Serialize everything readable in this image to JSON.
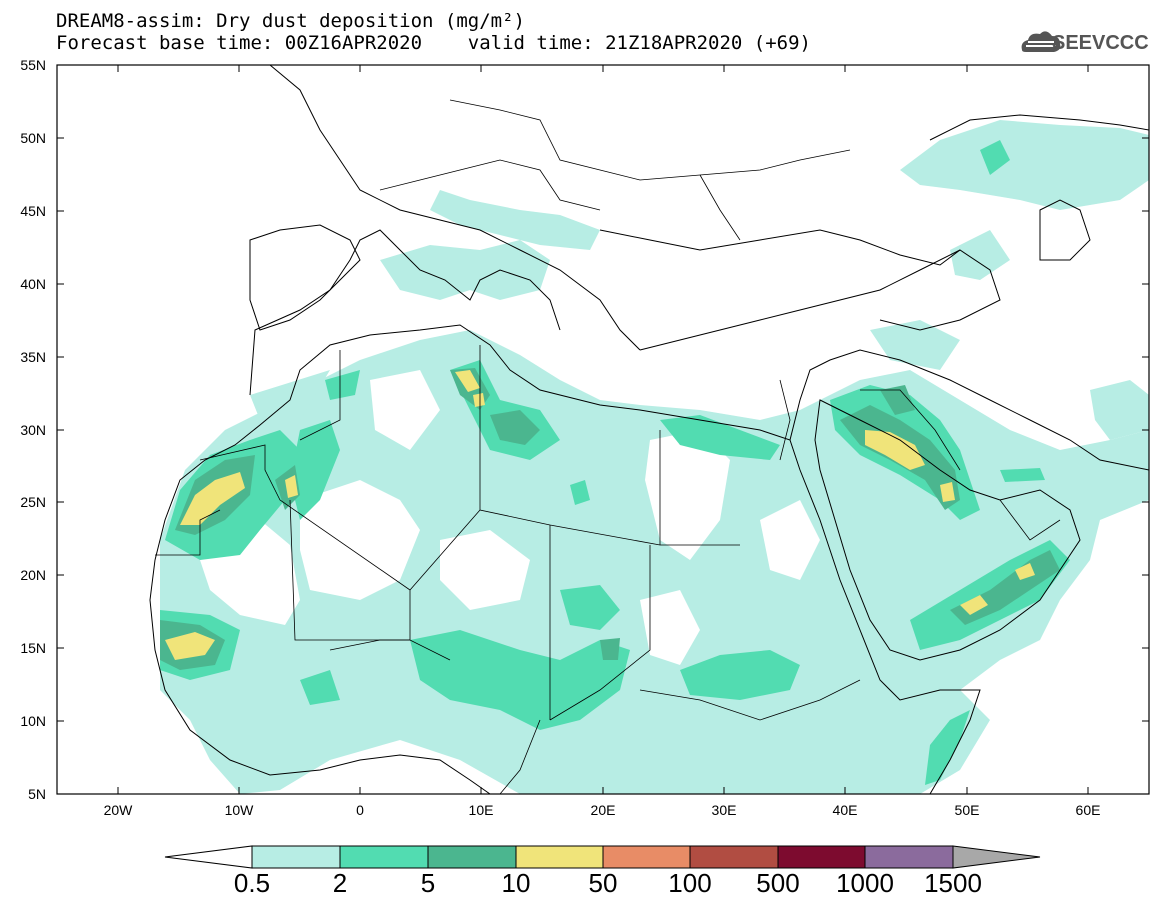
{
  "header": {
    "title_line1": "DREAM8-assim: Dry dust deposition (mg/m²)",
    "title_line2": "Forecast base time: 00Z16APR2020    valid time: 21Z18APR2020 (+69)"
  },
  "logo": {
    "text": "SEEVCCC",
    "icon": "cloud-logo-icon"
  },
  "map": {
    "lat_labels": [
      "55N",
      "50N",
      "45N",
      "40N",
      "35N",
      "30N",
      "25N",
      "20N",
      "15N",
      "10N",
      "5N"
    ],
    "lon_labels": [
      "20W",
      "10W",
      "0",
      "10E",
      "20E",
      "30E",
      "40E",
      "50E",
      "60E"
    ],
    "lon_range": [
      -25,
      65
    ],
    "lat_range": [
      5,
      55
    ]
  },
  "colorbar": {
    "labels": [
      "0.5",
      "2",
      "5",
      "10",
      "50",
      "100",
      "500",
      "1000",
      "1500"
    ],
    "colors": [
      "#b7ede4",
      "#52dcb1",
      "#4bb68f",
      "#f0e47a",
      "#e88c66",
      "#b14d42",
      "#7d0b2f",
      "#8b6b9d",
      "#a8a8a8"
    ]
  }
}
